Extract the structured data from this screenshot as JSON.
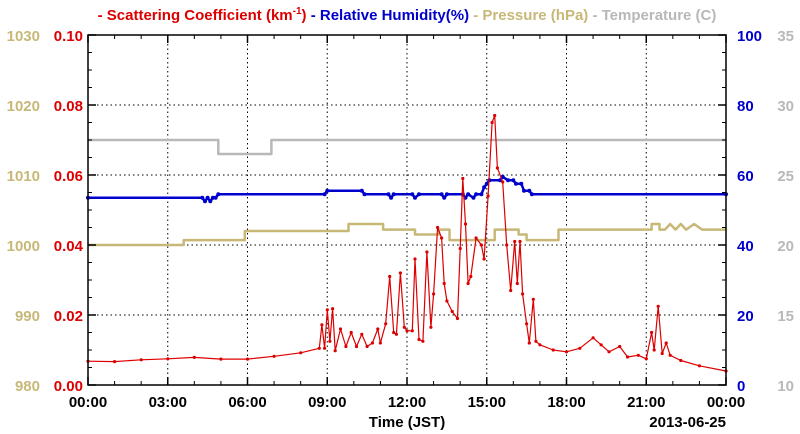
{
  "chart_data": {
    "type": "line",
    "xlabel": "Time (JST)",
    "date_label": "2013-06-25",
    "x_ticks": [
      "00:00",
      "03:00",
      "06:00",
      "09:00",
      "12:00",
      "15:00",
      "18:00",
      "21:00",
      "00:00"
    ],
    "x_range_hours": [
      0,
      24
    ],
    "grid": true,
    "legend_position": "top",
    "axes": {
      "scattering": {
        "side": "left-inner",
        "color": "#dd0000",
        "range": [
          0,
          0.1
        ],
        "ticks": [
          "0.00",
          "0.02",
          "0.04",
          "0.06",
          "0.08",
          "0.10"
        ]
      },
      "pressure": {
        "side": "left-outer",
        "color": "#c8b878",
        "range": [
          980,
          1030
        ],
        "ticks": [
          "980",
          "990",
          "1000",
          "1010",
          "1020",
          "1030"
        ]
      },
      "humidity": {
        "side": "right-inner",
        "color": "#0000cc",
        "range": [
          0,
          100
        ],
        "ticks": [
          "0",
          "20",
          "40",
          "60",
          "80",
          "100"
        ]
      },
      "temperature": {
        "side": "right-outer",
        "color": "#b8b8b8",
        "range": [
          10,
          35
        ],
        "ticks": [
          "10",
          "15",
          "20",
          "25",
          "30",
          "35"
        ]
      }
    },
    "legend": [
      {
        "key": "scattering",
        "dash": "-",
        "text": "Scattering Coefficient (km",
        "sup": "-1",
        "tail": ")"
      },
      {
        "key": "humidity",
        "dash": "-",
        "text": "Relative Humidity(%)",
        "sup": "",
        "tail": ""
      },
      {
        "key": "pressure",
        "dash": "-",
        "text": "Pressure (hPa)",
        "sup": "",
        "tail": ""
      },
      {
        "key": "temperature",
        "dash": "-",
        "text": "Temperature (C)",
        "sup": "",
        "tail": ""
      }
    ],
    "series": [
      {
        "key": "temperature",
        "name": "Temperature (C)",
        "color": "#b8b8b8",
        "markers": false,
        "points": [
          [
            0,
            27.5
          ],
          [
            4.9,
            27.5
          ],
          [
            4.9,
            26.5
          ],
          [
            6.9,
            26.5
          ],
          [
            6.9,
            27.5
          ],
          [
            24,
            27.5
          ]
        ]
      },
      {
        "key": "pressure",
        "name": "Pressure (hPa)",
        "color": "#c8b878",
        "markers": false,
        "points": [
          [
            0,
            1000
          ],
          [
            3.6,
            1000
          ],
          [
            3.6,
            1000.7
          ],
          [
            5.9,
            1000.7
          ],
          [
            5.9,
            1002
          ],
          [
            9.8,
            1002
          ],
          [
            9.8,
            1003
          ],
          [
            11.1,
            1003
          ],
          [
            11.1,
            1002.2
          ],
          [
            12.3,
            1002.2
          ],
          [
            12.3,
            1001.5
          ],
          [
            13.2,
            1001.5
          ],
          [
            13.2,
            1002.2
          ],
          [
            13.6,
            1002.2
          ],
          [
            13.6,
            1000.7
          ],
          [
            15.3,
            1000.7
          ],
          [
            15.3,
            1002.2
          ],
          [
            16.2,
            1002.2
          ],
          [
            16.2,
            1001.5
          ],
          [
            16.5,
            1001.5
          ],
          [
            16.5,
            1000.7
          ],
          [
            17.7,
            1000.7
          ],
          [
            17.7,
            1002.2
          ],
          [
            21.2,
            1002.2
          ],
          [
            21.2,
            1003
          ],
          [
            21.5,
            1003
          ],
          [
            21.5,
            1002.2
          ],
          [
            21.7,
            1002.2
          ],
          [
            21.9,
            1003
          ],
          [
            22.1,
            1002.2
          ],
          [
            22.3,
            1003
          ],
          [
            22.5,
            1002.2
          ],
          [
            22.8,
            1003
          ],
          [
            23.1,
            1002.2
          ],
          [
            24,
            1002.2
          ]
        ]
      },
      {
        "key": "humidity",
        "name": "Relative Humidity(%)",
        "color": "#0000cc",
        "markers": true,
        "points": [
          [
            0,
            53.5
          ],
          [
            4.3,
            53.5
          ],
          [
            4.4,
            52.5
          ],
          [
            4.5,
            53.5
          ],
          [
            4.6,
            52.5
          ],
          [
            4.7,
            53.5
          ],
          [
            4.8,
            53.5
          ],
          [
            4.9,
            54.5
          ],
          [
            8.9,
            54.5
          ],
          [
            9.0,
            55.5
          ],
          [
            10.3,
            55.5
          ],
          [
            10.4,
            54.5
          ],
          [
            11.3,
            54.5
          ],
          [
            11.4,
            53.5
          ],
          [
            11.5,
            54.5
          ],
          [
            12.2,
            54.5
          ],
          [
            12.3,
            53.5
          ],
          [
            12.45,
            54.5
          ],
          [
            13.3,
            54.5
          ],
          [
            13.4,
            53.5
          ],
          [
            13.5,
            54.5
          ],
          [
            14.1,
            54.5
          ],
          [
            14.2,
            53.5
          ],
          [
            14.3,
            54.5
          ],
          [
            14.5,
            53.5
          ],
          [
            14.6,
            54.5
          ],
          [
            14.8,
            54.5
          ],
          [
            14.9,
            56.5
          ],
          [
            15.0,
            57.5
          ],
          [
            15.1,
            58.5
          ],
          [
            15.5,
            58.5
          ],
          [
            15.6,
            59.5
          ],
          [
            15.8,
            58.5
          ],
          [
            16.0,
            58.5
          ],
          [
            16.1,
            57.5
          ],
          [
            16.3,
            57.5
          ],
          [
            16.4,
            55.5
          ],
          [
            16.6,
            55.5
          ],
          [
            16.7,
            54.5
          ],
          [
            24,
            54.5
          ]
        ]
      },
      {
        "key": "scattering",
        "name": "Scattering Coefficient",
        "color": "#dd0000",
        "markers": true,
        "points": [
          [
            0,
            0.0068
          ],
          [
            1,
            0.0067
          ],
          [
            2,
            0.0072
          ],
          [
            3,
            0.0075
          ],
          [
            4,
            0.0079
          ],
          [
            5,
            0.0074
          ],
          [
            6,
            0.0074
          ],
          [
            7,
            0.0082
          ],
          [
            8,
            0.0092
          ],
          [
            8.7,
            0.0105
          ],
          [
            8.8,
            0.0172
          ],
          [
            8.9,
            0.0105
          ],
          [
            9.0,
            0.0215
          ],
          [
            9.1,
            0.0125
          ],
          [
            9.2,
            0.0218
          ],
          [
            9.3,
            0.0098
          ],
          [
            9.5,
            0.016
          ],
          [
            9.7,
            0.011
          ],
          [
            9.9,
            0.015
          ],
          [
            10.1,
            0.011
          ],
          [
            10.3,
            0.0145
          ],
          [
            10.5,
            0.011
          ],
          [
            10.7,
            0.012
          ],
          [
            10.9,
            0.016
          ],
          [
            11.0,
            0.012
          ],
          [
            11.2,
            0.0175
          ],
          [
            11.35,
            0.031
          ],
          [
            11.5,
            0.015
          ],
          [
            11.6,
            0.0145
          ],
          [
            11.75,
            0.032
          ],
          [
            11.9,
            0.0165
          ],
          [
            12.0,
            0.0155
          ],
          [
            12.2,
            0.0155
          ],
          [
            12.3,
            0.036
          ],
          [
            12.45,
            0.013
          ],
          [
            12.6,
            0.0125
          ],
          [
            12.75,
            0.038
          ],
          [
            12.9,
            0.0165
          ],
          [
            13.0,
            0.026
          ],
          [
            13.15,
            0.045
          ],
          [
            13.3,
            0.042
          ],
          [
            13.4,
            0.029
          ],
          [
            13.5,
            0.024
          ],
          [
            13.7,
            0.021
          ],
          [
            13.9,
            0.019
          ],
          [
            14.0,
            0.039
          ],
          [
            14.1,
            0.059
          ],
          [
            14.2,
            0.046
          ],
          [
            14.3,
            0.029
          ],
          [
            14.4,
            0.031
          ],
          [
            14.6,
            0.042
          ],
          [
            14.8,
            0.04
          ],
          [
            14.9,
            0.036
          ],
          [
            15.05,
            0.054
          ],
          [
            15.2,
            0.075
          ],
          [
            15.3,
            0.077
          ],
          [
            15.4,
            0.062
          ],
          [
            15.6,
            0.058
          ],
          [
            15.75,
            0.04
          ],
          [
            15.9,
            0.027
          ],
          [
            16.05,
            0.041
          ],
          [
            16.15,
            0.029
          ],
          [
            16.25,
            0.041
          ],
          [
            16.35,
            0.026
          ],
          [
            16.5,
            0.0175
          ],
          [
            16.6,
            0.012
          ],
          [
            16.75,
            0.0245
          ],
          [
            16.85,
            0.0125
          ],
          [
            17.0,
            0.0115
          ],
          [
            17.5,
            0.01
          ],
          [
            18.0,
            0.0095
          ],
          [
            18.5,
            0.0105
          ],
          [
            19.0,
            0.0135
          ],
          [
            19.3,
            0.0115
          ],
          [
            19.6,
            0.0095
          ],
          [
            20.0,
            0.011
          ],
          [
            20.3,
            0.008
          ],
          [
            20.7,
            0.0085
          ],
          [
            21.0,
            0.0075
          ],
          [
            21.2,
            0.015
          ],
          [
            21.3,
            0.01
          ],
          [
            21.45,
            0.0225
          ],
          [
            21.6,
            0.009
          ],
          [
            21.75,
            0.012
          ],
          [
            21.9,
            0.0085
          ],
          [
            22.3,
            0.007
          ],
          [
            23.0,
            0.0055
          ],
          [
            24,
            0.004
          ]
        ]
      }
    ]
  }
}
